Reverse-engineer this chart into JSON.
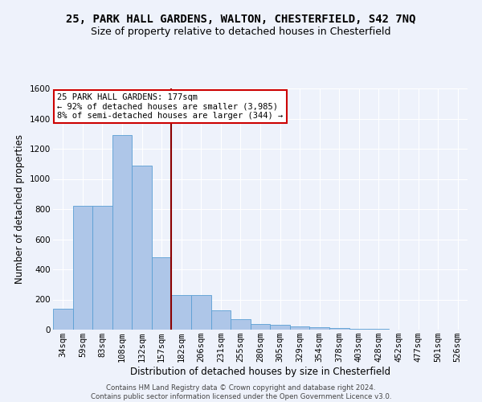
{
  "title": "25, PARK HALL GARDENS, WALTON, CHESTERFIELD, S42 7NQ",
  "subtitle": "Size of property relative to detached houses in Chesterfield",
  "xlabel": "Distribution of detached houses by size in Chesterfield",
  "ylabel": "Number of detached properties",
  "categories": [
    "34sqm",
    "59sqm",
    "83sqm",
    "108sqm",
    "132sqm",
    "157sqm",
    "182sqm",
    "206sqm",
    "231sqm",
    "255sqm",
    "280sqm",
    "305sqm",
    "329sqm",
    "354sqm",
    "378sqm",
    "403sqm",
    "428sqm",
    "452sqm",
    "477sqm",
    "501sqm",
    "526sqm"
  ],
  "values": [
    140,
    820,
    820,
    1290,
    1090,
    480,
    230,
    230,
    130,
    70,
    40,
    30,
    20,
    15,
    10,
    5,
    3,
    2,
    1,
    1,
    0
  ],
  "bar_color": "#aec6e8",
  "bar_edge_color": "#5a9fd4",
  "vline_color": "#8b0000",
  "vline_idx": 6,
  "ylim": [
    0,
    1600
  ],
  "yticks": [
    0,
    200,
    400,
    600,
    800,
    1000,
    1200,
    1400,
    1600
  ],
  "annotation_title": "25 PARK HALL GARDENS: 177sqm",
  "annotation_line1": "← 92% of detached houses are smaller (3,985)",
  "annotation_line2": "8% of semi-detached houses are larger (344) →",
  "annotation_box_color": "#ffffff",
  "annotation_box_edge": "#cc0000",
  "footer1": "Contains HM Land Registry data © Crown copyright and database right 2024.",
  "footer2": "Contains public sector information licensed under the Open Government Licence v3.0.",
  "background_color": "#eef2fb",
  "grid_color": "#ffffff",
  "title_fontsize": 10,
  "subtitle_fontsize": 9,
  "tick_fontsize": 7.5,
  "ylabel_fontsize": 8.5,
  "xlabel_fontsize": 8.5
}
